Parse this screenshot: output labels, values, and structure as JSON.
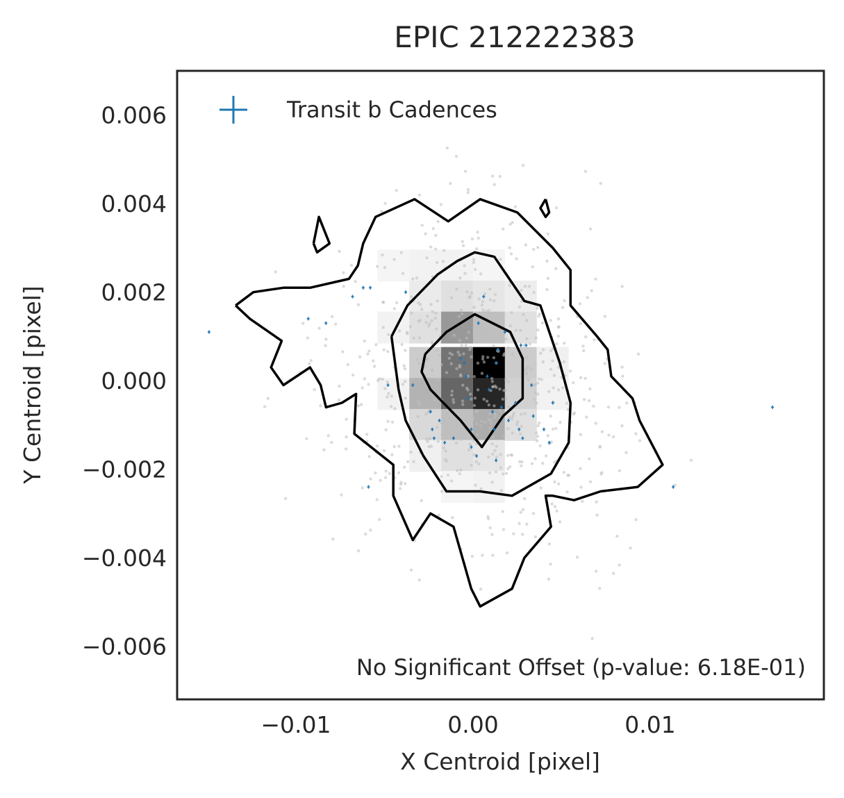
{
  "chart_data": {
    "type": "scatter",
    "title": "EPIC 212222383",
    "xlabel": "X Centroid [pixel]",
    "ylabel": "Y Centroid [pixel]",
    "xlim": [
      -0.0167,
      0.0198
    ],
    "ylim": [
      -0.0072,
      0.007
    ],
    "x_ticks": [
      -0.01,
      0.0,
      0.01
    ],
    "x_tick_labels": [
      "−0.01",
      "0.00",
      "0.01"
    ],
    "y_ticks": [
      0.006,
      0.004,
      0.002,
      0.0,
      -0.002,
      -0.004,
      -0.006
    ],
    "y_tick_labels": [
      "0.006",
      "0.004",
      "0.002",
      "0.000",
      "−0.002",
      "−0.004",
      "−0.006"
    ],
    "grid": false,
    "legend": {
      "placement": "top-left",
      "entries": [
        {
          "label": "Transit b Cadences",
          "marker": "plus",
          "color": "#1f77b4"
        }
      ]
    },
    "annotation": "No Significant Offset (p-value: 6.18E-01)",
    "colors": {
      "transit": "#1f77b4",
      "background_points": "#bdbdbd",
      "contour": "#000000"
    },
    "heatmap_2d_histogram": {
      "bin_size": [
        0.0018,
        0.00072
      ],
      "cells": [
        {
          "x": -0.0045,
          "y": 0.0026,
          "density": 0.04
        },
        {
          "x": -0.0027,
          "y": 0.0026,
          "density": 0.05
        },
        {
          "x": -0.0009,
          "y": 0.0026,
          "density": 0.05
        },
        {
          "x": 0.0009,
          "y": 0.0026,
          "density": 0.04
        },
        {
          "x": -0.0027,
          "y": 0.0019,
          "density": 0.08
        },
        {
          "x": -0.0009,
          "y": 0.0019,
          "density": 0.12
        },
        {
          "x": 0.0009,
          "y": 0.0019,
          "density": 0.1
        },
        {
          "x": 0.0027,
          "y": 0.0019,
          "density": 0.07
        },
        {
          "x": -0.0027,
          "y": 0.0012,
          "density": 0.12
        },
        {
          "x": -0.0009,
          "y": 0.0012,
          "density": 0.4
        },
        {
          "x": 0.0009,
          "y": 0.0012,
          "density": 0.25
        },
        {
          "x": 0.0027,
          "y": 0.0012,
          "density": 0.12
        },
        {
          "x": -0.0027,
          "y": 0.0004,
          "density": 0.2
        },
        {
          "x": -0.0009,
          "y": 0.0004,
          "density": 0.55
        },
        {
          "x": 0.0009,
          "y": 0.0004,
          "density": 1.0
        },
        {
          "x": 0.0027,
          "y": 0.0004,
          "density": 0.2
        },
        {
          "x": -0.0027,
          "y": -0.0003,
          "density": 0.3
        },
        {
          "x": -0.0009,
          "y": -0.0003,
          "density": 0.6
        },
        {
          "x": 0.0009,
          "y": -0.0003,
          "density": 0.85
        },
        {
          "x": 0.0027,
          "y": -0.0003,
          "density": 0.18
        },
        {
          "x": -0.0027,
          "y": -0.001,
          "density": 0.15
        },
        {
          "x": -0.0009,
          "y": -0.001,
          "density": 0.25
        },
        {
          "x": 0.0009,
          "y": -0.001,
          "density": 0.32
        },
        {
          "x": 0.0027,
          "y": -0.001,
          "density": 0.12
        },
        {
          "x": -0.0009,
          "y": -0.0017,
          "density": 0.12
        },
        {
          "x": 0.0009,
          "y": -0.0017,
          "density": 0.1
        },
        {
          "x": -0.0027,
          "y": -0.0017,
          "density": 0.06
        },
        {
          "x": 0.0009,
          "y": -0.0024,
          "density": 0.05
        },
        {
          "x": -0.0009,
          "y": -0.0024,
          "density": 0.04
        },
        {
          "x": -0.0045,
          "y": 0.0012,
          "density": 0.05
        },
        {
          "x": 0.0045,
          "y": 0.0004,
          "density": 0.06
        },
        {
          "x": 0.0045,
          "y": -0.0003,
          "density": 0.05
        },
        {
          "x": -0.0045,
          "y": -0.0003,
          "density": 0.05
        }
      ]
    },
    "contours": [
      {
        "level": "outer",
        "points": [
          [
            -0.0134,
            0.0017
          ],
          [
            -0.0124,
            0.002
          ],
          [
            -0.0107,
            0.0021
          ],
          [
            -0.0092,
            0.0021
          ],
          [
            -0.007,
            0.0023
          ],
          [
            -0.0065,
            0.0026
          ],
          [
            -0.0062,
            0.0031
          ],
          [
            -0.0055,
            0.0037
          ],
          [
            -0.0033,
            0.0041
          ],
          [
            -0.0014,
            0.0036
          ],
          [
            0.0004,
            0.0041
          ],
          [
            0.0025,
            0.0038
          ],
          [
            0.0045,
            0.003
          ],
          [
            0.0055,
            0.0025
          ],
          [
            0.0055,
            0.0017
          ],
          [
            0.007,
            0.001
          ],
          [
            0.0076,
            0.0007
          ],
          [
            0.0078,
            0.0001
          ],
          [
            0.009,
            -0.0004
          ],
          [
            0.0094,
            -0.0009
          ],
          [
            0.0107,
            -0.0019
          ],
          [
            0.0093,
            -0.0024
          ],
          [
            0.0072,
            -0.0025
          ],
          [
            0.0057,
            -0.0027
          ],
          [
            0.0045,
            -0.0026
          ],
          [
            0.0041,
            -0.0026
          ],
          [
            0.0044,
            -0.0033
          ],
          [
            0.0029,
            -0.004
          ],
          [
            0.0022,
            -0.0047
          ],
          [
            0.0004,
            -0.0051
          ],
          [
            -0.0001,
            -0.0047
          ],
          [
            -0.0011,
            -0.0033
          ],
          [
            -0.0024,
            -0.003
          ],
          [
            -0.0034,
            -0.0036
          ],
          [
            -0.0045,
            -0.0026
          ],
          [
            -0.0045,
            -0.0019
          ],
          [
            -0.0067,
            -0.0012
          ],
          [
            -0.0066,
            -0.0003
          ],
          [
            -0.0074,
            -0.0005
          ],
          [
            -0.0083,
            -0.0006
          ],
          [
            -0.0086,
            -0.0001
          ],
          [
            -0.0089,
            0.0001
          ],
          [
            -0.0092,
            0.0003
          ],
          [
            -0.0107,
            -0.0001
          ],
          [
            -0.0114,
            0.0003
          ],
          [
            -0.0108,
            0.0009
          ],
          [
            -0.0126,
            0.0014
          ],
          [
            -0.0134,
            0.0017
          ]
        ]
      },
      {
        "level": "middle",
        "points": [
          [
            -0.0046,
            0.001
          ],
          [
            -0.0037,
            0.0017
          ],
          [
            -0.002,
            0.0024
          ],
          [
            -0.0009,
            0.0027
          ],
          [
            0.0001,
            0.0029
          ],
          [
            0.0012,
            0.0028
          ],
          [
            0.0029,
            0.0018
          ],
          [
            0.0038,
            0.0017
          ],
          [
            0.0049,
            0.0004
          ],
          [
            0.0055,
            -0.0005
          ],
          [
            0.0054,
            -0.0014
          ],
          [
            0.0044,
            -0.0021
          ],
          [
            0.0022,
            -0.0026
          ],
          [
            0.0004,
            -0.0025
          ],
          [
            -0.0015,
            -0.0025
          ],
          [
            -0.0028,
            -0.0017
          ],
          [
            -0.0038,
            -0.0009
          ],
          [
            -0.0042,
            -0.0002
          ],
          [
            -0.0046,
            0.001
          ]
        ]
      },
      {
        "level": "inner",
        "points": [
          [
            -0.0027,
            0.0006
          ],
          [
            -0.0015,
            0.0011
          ],
          [
            0.0001,
            0.0015
          ],
          [
            0.0021,
            0.0011
          ],
          [
            0.0028,
            0.0005
          ],
          [
            0.0028,
            -0.0004
          ],
          [
            0.0017,
            -0.0008
          ],
          [
            0.0005,
            -0.0015
          ],
          [
            -0.0007,
            -0.0009
          ],
          [
            -0.0024,
            -0.0002
          ],
          [
            -0.0029,
            0.0002
          ],
          [
            -0.0027,
            0.0006
          ]
        ]
      },
      {
        "level": "island-left",
        "points": [
          [
            -0.009,
            0.0031
          ],
          [
            -0.0087,
            0.0037
          ],
          [
            -0.0081,
            0.0031
          ],
          [
            -0.0088,
            0.0029
          ],
          [
            -0.009,
            0.0031
          ]
        ]
      },
      {
        "level": "island-right",
        "points": [
          [
            0.0041,
            0.0041
          ],
          [
            0.0043,
            0.0038
          ],
          [
            0.0041,
            0.0037
          ],
          [
            0.0038,
            0.0039
          ],
          [
            0.0041,
            0.0041
          ]
        ]
      }
    ],
    "transit_b_cadences": [
      [
        -0.0149,
        0.0011
      ],
      [
        -0.0093,
        0.0014
      ],
      [
        -0.0083,
        0.0013
      ],
      [
        -0.0068,
        0.0019
      ],
      [
        -0.0062,
        0.0021
      ],
      [
        -0.0058,
        0.0021
      ],
      [
        -0.0038,
        0.002
      ],
      [
        -0.0048,
        -0.0001
      ],
      [
        -0.0034,
        -0.0001
      ],
      [
        -0.0059,
        -0.0024
      ],
      [
        -0.0024,
        -0.0007
      ],
      [
        -0.0023,
        -0.0011
      ],
      [
        -0.0022,
        -0.0013
      ],
      [
        -0.0019,
        -0.0009
      ],
      [
        -0.0016,
        -0.0014
      ],
      [
        -0.0011,
        -0.0013
      ],
      [
        -0.0007,
        0.0005
      ],
      [
        -0.0005,
        0.0004
      ],
      [
        -0.0004,
        0.0001
      ],
      [
        -0.0003,
        -0.0004
      ],
      [
        -0.0001,
        -0.0011
      ],
      [
        -0.0001,
        -0.0015
      ],
      [
        0.0002,
        -0.0017
      ],
      [
        0.0003,
        0.0013
      ],
      [
        0.0006,
        0.0019
      ],
      [
        0.0008,
        0.0001
      ],
      [
        0.0009,
        -0.0002
      ],
      [
        0.0011,
        -0.0007
      ],
      [
        0.0012,
        -0.0011
      ],
      [
        0.0013,
        -0.0018
      ],
      [
        0.0013,
        0.0004
      ],
      [
        0.0014,
        0.0007
      ],
      [
        0.0016,
        -0.0006
      ],
      [
        0.0018,
        0.0011
      ],
      [
        0.002,
        -0.0009
      ],
      [
        0.0024,
        -0.0005
      ],
      [
        0.0026,
        -0.0011
      ],
      [
        0.0027,
        0.0008
      ],
      [
        0.0028,
        -0.0013
      ],
      [
        0.003,
        0.0008
      ],
      [
        0.0033,
        -0.0001
      ],
      [
        0.0034,
        -0.0008
      ],
      [
        0.004,
        -0.0011
      ],
      [
        0.0043,
        -0.0014
      ],
      [
        0.0045,
        -0.0005
      ],
      [
        0.0113,
        -0.0024
      ],
      [
        0.0169,
        -0.0006
      ]
    ]
  }
}
